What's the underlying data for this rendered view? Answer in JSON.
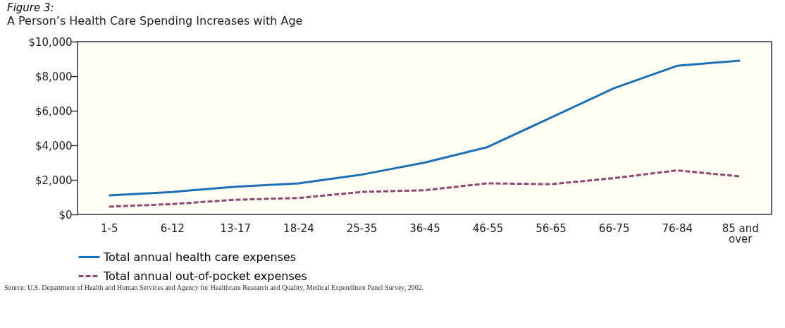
{
  "chart_data": {
    "type": "line",
    "title": "Figure 3:",
    "subtitle": "A Person’s Health Care Spending Increases with Age",
    "categories": [
      "1-5",
      "6-12",
      "13-17",
      "18-24",
      "25-35",
      "36-45",
      "46-55",
      "56-65",
      "66-75",
      "76-84",
      "85 and over"
    ],
    "series": [
      {
        "name": "Total annual health care expenses",
        "color": "#1f6fb5",
        "line_style": "solid",
        "values": [
          1100,
          1300,
          1600,
          1800,
          2300,
          3000,
          3900,
          5600,
          7300,
          8600,
          8900
        ]
      },
      {
        "name": "Total annual out-of-pocket expenses",
        "color": "#8e4a6e",
        "line_style": "dashed",
        "values": [
          450,
          600,
          850,
          950,
          1300,
          1400,
          1800,
          1750,
          2100,
          2550,
          2200
        ]
      }
    ],
    "ylim": [
      0,
      10000
    ],
    "yticks": [
      {
        "value": 0,
        "label": "$0"
      },
      {
        "value": 2000,
        "label": "$2,000"
      },
      {
        "value": 4000,
        "label": "$4,000"
      },
      {
        "value": 6000,
        "label": "$6,000"
      },
      {
        "value": 8000,
        "label": "$8,000"
      },
      {
        "value": 10000,
        "label": "$10,000"
      }
    ],
    "grid": false,
    "legend": "bottom left",
    "marker": "none",
    "annotations": [
      "Source: U.S. Department of Health and Human Services and Agency for Healthcare Research and Quality, Medical Expenditure Panel Survey, 2002."
    ]
  }
}
